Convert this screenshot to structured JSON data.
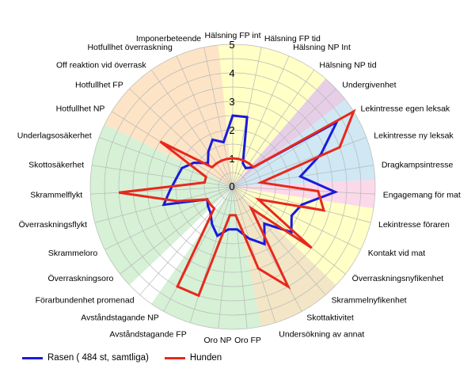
{
  "chart_data": {
    "type": "radar",
    "categories": [
      "Hälsning FP int",
      "Hälsning FP tid",
      "Hälsning NP Int",
      "Hälsning NP tid",
      "Undergivenhet",
      "Lekintresse egen leksak",
      "Lekintresse ny leksak",
      "Dragkampsintresse",
      "Engagemang för mat",
      "Lekintresse föraren",
      "Kontakt vid mat",
      "Överraskningsnyfikenhet",
      "Skramme­lnyfikenhet",
      "Skottaktivitet",
      "Undersökning av annat",
      "Oro FP",
      "Oro NP",
      "Avståndstagande FP",
      "Avståndstagande NP",
      "Förarbundenhet promenad",
      "Överraskningsoro",
      "Skrammeloro",
      "Överraskningsflykt",
      "Skrammelflykt",
      "Skottosäkerhet",
      "Underlagsosäkerhet",
      "Hotfullhet NP",
      "Hotfullhet FP",
      "Off reaktion vid överrask",
      "Hotfullhet överraskning",
      "Imponerbeteende"
    ],
    "r_ticks": [
      "1",
      "2",
      "3",
      "4",
      "5"
    ],
    "r_range": [
      0,
      5
    ],
    "series": [
      {
        "name": "Rasen ( 484 st, samtliga)",
        "color": "#1a1adb",
        "values": [
          2.5,
          2.5,
          0.9,
          0.8,
          1.0,
          4.3,
          3.3,
          2.4,
          3.6,
          2.5,
          2.3,
          2.6,
          1.7,
          2.3,
          1.9,
          1.5,
          1.5,
          1.8,
          1.5,
          1.2,
          1.1,
          1.0,
          2.5,
          2.2,
          2.0,
          1.9,
          1.6,
          1.2,
          1.5,
          1.8,
          1.6
        ]
      },
      {
        "name": "Hunden",
        "color": "#e8281c",
        "values": [
          1.0,
          1.0,
          1.0,
          1.0,
          1.0,
          5.0,
          4.0,
          1.0,
          3.0,
          3.3,
          1.0,
          3.5,
          1.0,
          4.0,
          3.0,
          1.0,
          1.0,
          4.0,
          4.0,
          1.0,
          1.0,
          1.0,
          2.0,
          4.0,
          1.0,
          1.0,
          3.0,
          1.0,
          1.0,
          1.0,
          1.0
        ]
      }
    ],
    "sectors": [
      {
        "from": 0,
        "to": 3,
        "color": "#ffffc6"
      },
      {
        "from": 4,
        "to": 4,
        "color": "#e6cfe6"
      },
      {
        "from": 5,
        "to": 7,
        "color": "#cfe8f3"
      },
      {
        "from": 8,
        "to": 8,
        "color": "#fbd9ea"
      },
      {
        "from": 9,
        "to": 11,
        "color": "#ffffc6"
      },
      {
        "from": 12,
        "to": 14,
        "color": "#f3e6c6"
      },
      {
        "from": 15,
        "to": 18,
        "color": "#d6f1d6"
      },
      {
        "from": 19,
        "to": 19,
        "color": "#ffffff"
      },
      {
        "from": 20,
        "to": 25,
        "color": "#d6f1d6"
      },
      {
        "from": 26,
        "to": 30,
        "color": "#fde4c6"
      }
    ],
    "grid": true,
    "legend_position": "bottom-left"
  }
}
